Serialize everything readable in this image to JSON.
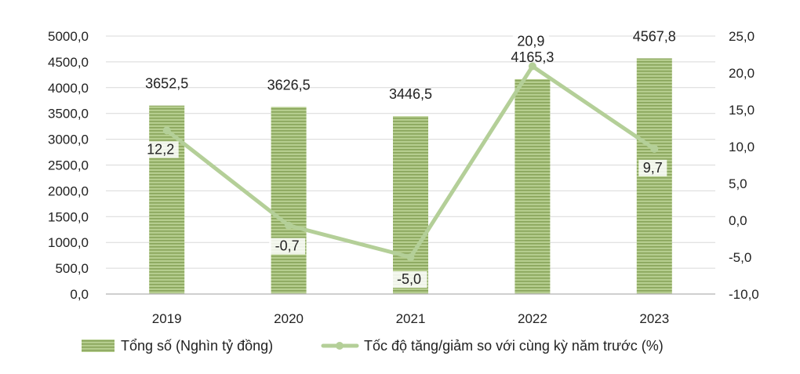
{
  "chart_data": {
    "type": "bar+line",
    "categories": [
      "2019",
      "2020",
      "2021",
      "2022",
      "2023"
    ],
    "series": [
      {
        "name": "Tổng số (Nghìn tỷ đồng)",
        "type": "bar",
        "axis": "left",
        "values": [
          3652.5,
          3626.5,
          3446.5,
          4165.3,
          4567.8
        ],
        "labels": [
          "3652,5",
          "3626,5",
          "3446,5",
          "4165,3",
          "4567,8"
        ]
      },
      {
        "name": "Tốc độ tăng/giảm so với cùng kỳ năm trước (%)",
        "type": "line",
        "axis": "right",
        "values": [
          12.2,
          -0.7,
          -5.0,
          20.9,
          9.7
        ],
        "labels": [
          "12,2",
          "-0,7",
          "-5,0",
          "20,9",
          "9,7"
        ]
      }
    ],
    "y_left": {
      "range": [
        0,
        5000
      ],
      "ticks": [
        0,
        500,
        1000,
        1500,
        2000,
        2500,
        3000,
        3500,
        4000,
        4500,
        5000
      ],
      "tick_labels": [
        "0,0",
        "500,0",
        "1000,0",
        "1500,0",
        "2000,0",
        "2500,0",
        "3000,0",
        "3500,0",
        "4000,0",
        "4500,0",
        "5000,0"
      ]
    },
    "y_right": {
      "range": [
        -10,
        25
      ],
      "ticks": [
        -10,
        -5,
        0,
        5,
        10,
        15,
        20,
        25
      ],
      "tick_labels": [
        "-10,0",
        "-5,0",
        "0,0",
        "5,0",
        "10,0",
        "15,0",
        "20,0",
        "25,0"
      ]
    },
    "grid": true,
    "legend_position": "bottom",
    "colors": {
      "bar": "#a9c47f",
      "bar_stripe": "#7f9a52",
      "line": "#b4cf98",
      "grid": "#d9d9d9",
      "axis": "#bfbfbf"
    }
  }
}
